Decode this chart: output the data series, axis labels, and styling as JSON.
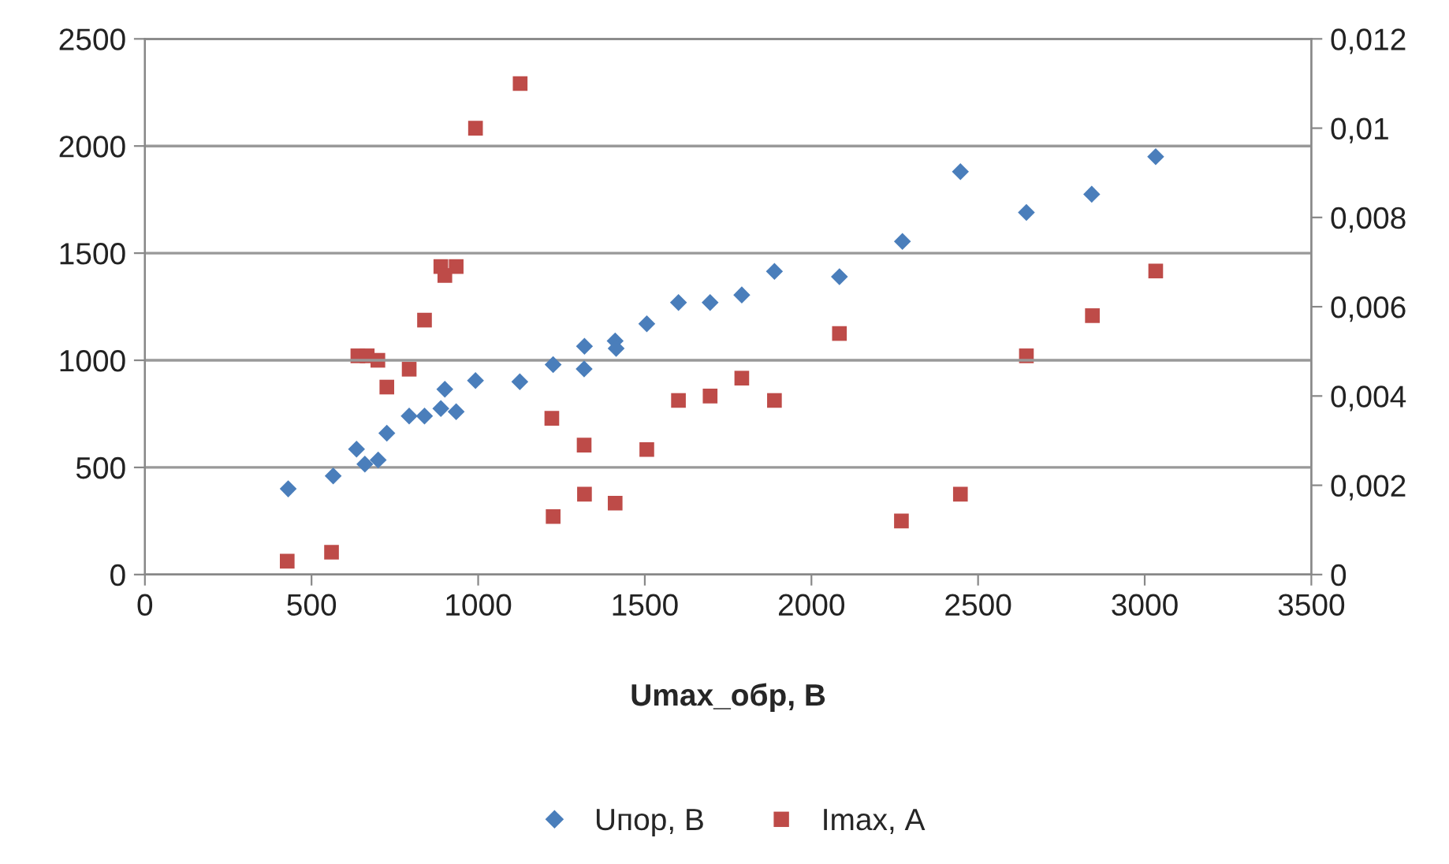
{
  "chart_data": {
    "type": "scatter",
    "xlabel": "Umax_обр, В",
    "grid": "y",
    "legend": "bottom",
    "xlim": [
      0,
      3500
    ],
    "xticks": [
      0,
      500,
      1000,
      1500,
      2000,
      2500,
      3000,
      3500
    ],
    "ylim": [
      0,
      2500
    ],
    "yticks": [
      0,
      500,
      1000,
      1500,
      2000,
      2500
    ],
    "y2lim": [
      0,
      0.012
    ],
    "y2ticks": [
      {
        "value": 0,
        "label": "0"
      },
      {
        "value": 0.002,
        "label": "0,002"
      },
      {
        "value": 0.004,
        "label": "0,004"
      },
      {
        "value": 0.006,
        "label": "0,006"
      },
      {
        "value": 0.008,
        "label": "0,008"
      },
      {
        "value": 0.01,
        "label": "0,01"
      },
      {
        "value": 0.012,
        "label": "0,012"
      }
    ],
    "series": [
      {
        "name": "Uпор, В",
        "color": "#4a7ebb",
        "marker": "diamond",
        "x": [
          430,
          565,
          635,
          660,
          700,
          726,
          793,
          839,
          888,
          934,
          900,
          992,
          1125,
          1225,
          1318,
          1319,
          1411,
          1414,
          1506,
          1601,
          1696,
          1791,
          1889,
          2084,
          2273,
          2447,
          2645,
          2841,
          3033
        ],
        "values": [
          400,
          460,
          585,
          515,
          535,
          660,
          740,
          740,
          775,
          760,
          865,
          905,
          900,
          980,
          960,
          1065,
          1090,
          1055,
          1170,
          1270,
          1270,
          1305,
          1415,
          1390,
          1555,
          1880,
          1690,
          1775,
          1950
        ]
      },
      {
        "name": "Imax, А",
        "color": "#be4b48",
        "marker": "square",
        "axis": "y2",
        "x": [
          427,
          560,
          639,
          667,
          699,
          726,
          793,
          839,
          888,
          900,
          934,
          992,
          1126,
          1221,
          1225,
          1318,
          1319,
          1411,
          1506,
          1601,
          1696,
          1791,
          1889,
          2084,
          2270,
          2447,
          2645,
          2843,
          3033
        ],
        "values": [
          0.0003,
          0.0005,
          0.0049,
          0.0049,
          0.0048,
          0.0042,
          0.0046,
          0.0057,
          0.0069,
          0.0067,
          0.0069,
          0.01,
          0.011,
          0.0035,
          0.0013,
          0.0029,
          0.0018,
          0.0016,
          0.0028,
          0.0039,
          0.004,
          0.0044,
          0.0039,
          0.0054,
          0.0012,
          0.0018,
          0.0049,
          0.0058,
          0.0068
        ]
      }
    ]
  }
}
